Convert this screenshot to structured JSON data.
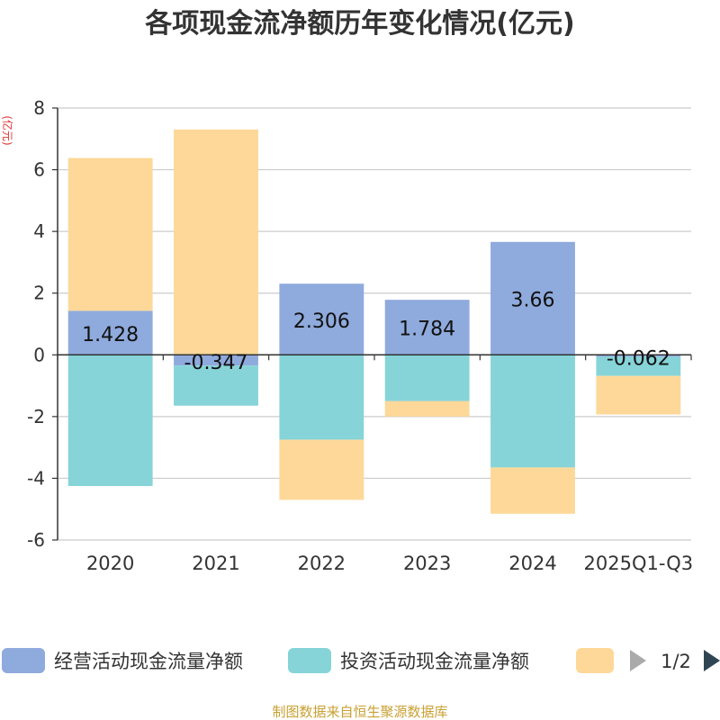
{
  "chart_data": {
    "type": "bar",
    "stacked": true,
    "title": "各项现金流净额历年变化情况(亿元)",
    "ylabel": "(亿元)",
    "xlabel": "",
    "ylim": [
      -6,
      8
    ],
    "yticks": [
      8,
      6,
      4,
      2,
      0,
      -2,
      -4,
      -6
    ],
    "grid": true,
    "categories": [
      "2020",
      "2021",
      "2022",
      "2023",
      "2024",
      "2025Q1-Q3"
    ],
    "series": [
      {
        "name": "经营活动现金流量净额",
        "color": "#8faadc",
        "values": [
          1.428,
          -0.347,
          2.306,
          1.784,
          3.66,
          -0.062
        ],
        "show_labels": true
      },
      {
        "name": "投资活动现金流量净额",
        "color": "#86d4d8",
        "values": [
          -4.25,
          -1.3,
          -2.75,
          -1.5,
          -3.65,
          -0.62
        ],
        "show_labels": false
      },
      {
        "name": "",
        "color": "#fdd899",
        "values": [
          4.95,
          7.3,
          -1.95,
          -0.5,
          -1.5,
          -1.25
        ],
        "show_labels": false
      }
    ],
    "legend": {
      "position": "bottom",
      "page": "1/2"
    }
  },
  "source_text": "制图数据来自恒生聚源数据库"
}
